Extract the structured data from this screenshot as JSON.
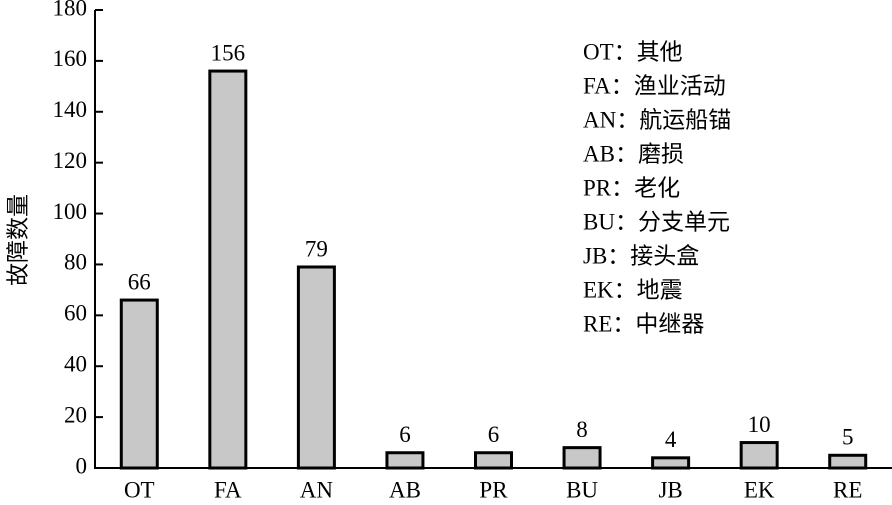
{
  "chart_data": {
    "type": "bar",
    "y_label": "故障数量",
    "categories": [
      "OT",
      "FA",
      "AN",
      "AB",
      "PR",
      "BU",
      "JB",
      "EK",
      "RE"
    ],
    "values": [
      66,
      156,
      79,
      6,
      6,
      8,
      4,
      10,
      5
    ],
    "color": "#c8c8c8",
    "ylim": [
      0,
      180
    ],
    "yticks": [
      0,
      20,
      40,
      60,
      80,
      100,
      120,
      140,
      160,
      180
    ],
    "grid": false,
    "annotations": [
      "OT：其他",
      "FA：渔业活动",
      "AN：航运船锚",
      "AB：磨损",
      "PR：老化",
      "BU：分支单元",
      "JB：接头盒",
      "EK：地震",
      "RE：中继器"
    ]
  }
}
